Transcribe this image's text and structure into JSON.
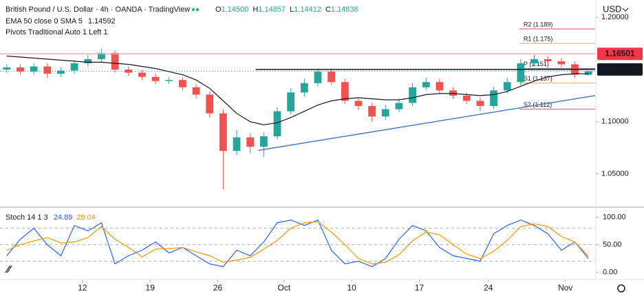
{
  "chart_data": [
    {
      "type": "candlestick",
      "title": "British Pound / U.S. Dollar · 4h · OANDA · TradingView",
      "currency": "USD",
      "ohlc_legend": [
        {
          "key": "O",
          "value": 1.145,
          "label": "1.14500"
        },
        {
          "key": "H",
          "value": 1.14857,
          "label": "1.14857"
        },
        {
          "key": "L",
          "value": 1.14412,
          "label": "1.14412"
        },
        {
          "key": "C",
          "value": 1.14838,
          "label": "1.14838"
        }
      ],
      "x": [
        0.5,
        1.5,
        2.5,
        3.5,
        4.5,
        5.5,
        6.5,
        7.5,
        8.5,
        9.5,
        10.5,
        11.5,
        12.5,
        13.5,
        14.5,
        15.5,
        16.5,
        17.5,
        18.5,
        19.5,
        20.5,
        21.5,
        22.5,
        23.5,
        24.5,
        25.5,
        26.5,
        27.5,
        28.5,
        29.5,
        30.5,
        31.5,
        32.5,
        33.5,
        34.5,
        35.5,
        36.5,
        37.5,
        38.5,
        39.5,
        40.5,
        41.5,
        42.5,
        43.5
      ],
      "open": [
        1.15,
        1.152,
        1.148,
        1.153,
        1.146,
        1.149,
        1.156,
        1.16,
        1.166,
        1.15,
        1.147,
        1.143,
        1.139,
        1.14,
        1.133,
        1.126,
        1.108,
        1.072,
        1.085,
        1.076,
        1.086,
        1.11,
        1.128,
        1.137,
        1.148,
        1.138,
        1.12,
        1.115,
        1.105,
        1.112,
        1.118,
        1.133,
        1.138,
        1.13,
        1.125,
        1.12,
        1.115,
        1.13,
        1.138,
        1.156,
        1.16,
        1.158,
        1.155,
        1.145
      ],
      "high": [
        1.155,
        1.155,
        1.156,
        1.156,
        1.152,
        1.159,
        1.164,
        1.17,
        1.168,
        1.153,
        1.15,
        1.146,
        1.143,
        1.143,
        1.136,
        1.129,
        1.112,
        1.092,
        1.089,
        1.09,
        1.114,
        1.132,
        1.141,
        1.151,
        1.151,
        1.141,
        1.123,
        1.118,
        1.116,
        1.122,
        1.137,
        1.142,
        1.141,
        1.133,
        1.128,
        1.123,
        1.133,
        1.142,
        1.16,
        1.164,
        1.163,
        1.161,
        1.158,
        1.14857
      ],
      "low": [
        1.147,
        1.145,
        1.145,
        1.142,
        1.143,
        1.146,
        1.153,
        1.157,
        1.147,
        1.144,
        1.14,
        1.136,
        1.136,
        1.13,
        1.122,
        1.104,
        1.035,
        1.068,
        1.07,
        1.066,
        1.083,
        1.107,
        1.124,
        1.134,
        1.135,
        1.117,
        1.111,
        1.1,
        1.102,
        1.109,
        1.115,
        1.13,
        1.127,
        1.122,
        1.117,
        1.11,
        1.112,
        1.127,
        1.135,
        1.153,
        1.155,
        1.152,
        1.142,
        1.14412
      ],
      "close": [
        1.152,
        1.148,
        1.153,
        1.146,
        1.149,
        1.156,
        1.16,
        1.166,
        1.15,
        1.147,
        1.143,
        1.139,
        1.14,
        1.133,
        1.126,
        1.108,
        1.072,
        1.085,
        1.076,
        1.086,
        1.11,
        1.128,
        1.137,
        1.148,
        1.138,
        1.12,
        1.115,
        1.105,
        1.112,
        1.118,
        1.133,
        1.138,
        1.13,
        1.125,
        1.12,
        1.115,
        1.13,
        1.138,
        1.156,
        1.16,
        1.158,
        1.155,
        1.145,
        1.14838
      ],
      "up_color": "#26a69a",
      "down_color": "#ef5350",
      "ema": {
        "name": "EMA 50 close 0 SMA 5",
        "color": "#131722",
        "values": [
          1.163,
          1.162,
          1.161,
          1.16,
          1.159,
          1.158,
          1.157,
          1.157,
          1.156,
          1.155,
          1.153,
          1.151,
          1.148,
          1.145,
          1.14,
          1.132,
          1.12,
          1.108,
          1.1,
          1.097,
          1.099,
          1.104,
          1.11,
          1.116,
          1.12,
          1.122,
          1.123,
          1.122,
          1.121,
          1.121,
          1.123,
          1.126,
          1.127,
          1.127,
          1.126,
          1.125,
          1.126,
          1.129,
          1.134,
          1.139,
          1.143,
          1.145,
          1.146,
          1.14592
        ]
      },
      "pivots": {
        "title": "Pivots Traditional Auto 1 Left 1",
        "x_start": 38.4,
        "levels": [
          {
            "value": 1.189,
            "label": "R2 (1.189)",
            "color": "#e0487a"
          },
          {
            "value": 1.175,
            "label": "R1 (1.175)",
            "color": "#f5a623"
          },
          {
            "value": 1.151,
            "label": "P (1.151)",
            "color": "#787b86"
          },
          {
            "value": 1.137,
            "label": "S1 (1.137)",
            "color": "#f5a623"
          },
          {
            "value": 1.112,
            "label": "S2 (1.112)",
            "color": "#e0487a"
          }
        ]
      },
      "hlines": [
        {
          "value": 1.16501,
          "x_start": 0,
          "color": "#f7a9b8",
          "box_color": "#f23645"
        },
        {
          "value": 1.15013,
          "x_start": 18.9,
          "color": "#131722",
          "box_color": "#131722"
        }
      ],
      "trendline": {
        "x": [
          19.1,
          44
        ],
        "y": [
          1.0725,
          1.125
        ],
        "color": "#4a7fc1"
      },
      "xlim": [
        0,
        44
      ],
      "ylim": [
        1.02,
        1.2167
      ],
      "yticks": [
        {
          "value": 1.05,
          "label": "1.05000"
        },
        {
          "value": 1.1,
          "label": "1.10000"
        },
        {
          "value": 1.2,
          "label": "1.20000"
        }
      ],
      "xticks": [
        {
          "value": 6.1,
          "label": "12"
        },
        {
          "value": 11.1,
          "label": "19"
        },
        {
          "value": 16.1,
          "label": "26"
        },
        {
          "value": 21.0,
          "label": "Oct"
        },
        {
          "value": 26.0,
          "label": "10"
        },
        {
          "value": 31.0,
          "label": "17"
        },
        {
          "value": 36.1,
          "label": "24"
        },
        {
          "value": 41.8,
          "label": "Nov"
        }
      ],
      "grid": false
    },
    {
      "type": "line",
      "title": "Stoch 14 1 3",
      "x": [
        0.5,
        1.5,
        2.5,
        3.5,
        4.5,
        5.5,
        6.5,
        7.5,
        8.5,
        9.5,
        10.5,
        11.5,
        12.5,
        13.5,
        14.5,
        15.5,
        16.5,
        17.5,
        18.5,
        19.5,
        20.5,
        21.5,
        22.5,
        23.5,
        24.5,
        25.5,
        26.5,
        27.5,
        28.5,
        29.5,
        30.5,
        31.5,
        32.5,
        33.5,
        34.5,
        35.5,
        36.5,
        37.5,
        38.5,
        39.5,
        40.5,
        41.5,
        42.5,
        43.5
      ],
      "series": [
        {
          "color": "#2962ff",
          "values": [
            30,
            60,
            80,
            50,
            30,
            85,
            75,
            90,
            15,
            30,
            40,
            55,
            35,
            45,
            30,
            15,
            10,
            40,
            30,
            55,
            90,
            95,
            85,
            95,
            40,
            15,
            20,
            10,
            25,
            60,
            85,
            75,
            45,
            30,
            25,
            20,
            70,
            85,
            95,
            85,
            70,
            40,
            55,
            24.89
          ]
        },
        {
          "color": "#ff9800",
          "values": [
            40,
            50,
            57,
            63,
            53,
            55,
            63,
            83,
            60,
            45,
            28,
            42,
            43,
            45,
            37,
            30,
            18,
            22,
            27,
            42,
            58,
            80,
            90,
            92,
            73,
            50,
            25,
            15,
            18,
            32,
            57,
            73,
            68,
            50,
            33,
            25,
            38,
            58,
            83,
            88,
            83,
            65,
            55,
            29.04
          ]
        }
      ],
      "levels": [
        80,
        50,
        20
      ],
      "xlim": [
        0,
        44
      ],
      "ylim": [
        -12,
        117
      ],
      "yticks": [
        {
          "value": 0,
          "label": "0.00"
        },
        {
          "value": 50,
          "label": "50.00"
        },
        {
          "value": 100,
          "label": "100.00"
        }
      ]
    }
  ]
}
